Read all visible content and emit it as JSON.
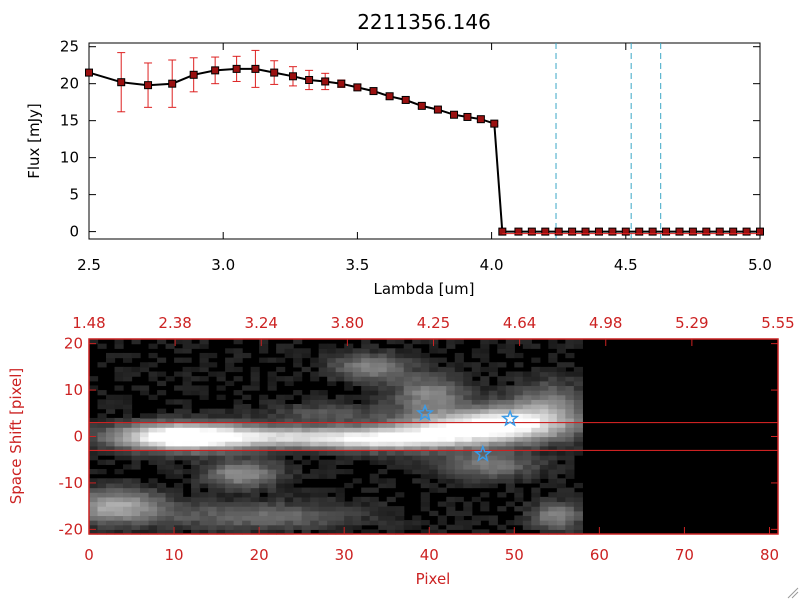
{
  "colors": {
    "axes_black": "#000000",
    "accent_red": "#cc2222",
    "errorbar_red": "#dd2020",
    "marker_fill": "#9a1010",
    "line_cyan": "#3aa6c6",
    "star_blue": "#3a9be8"
  },
  "chart_data": [
    {
      "type": "line",
      "title": "2211356.146",
      "xlabel": "Lambda [um]",
      "ylabel": "Flux [mJy]",
      "xlim": [
        2.5,
        5.0
      ],
      "ylim": [
        -1,
        25.5
      ],
      "xticks": [
        "2.5",
        "3.0",
        "3.5",
        "4.0",
        "4.5",
        "5.0"
      ],
      "xtick_values": [
        2.5,
        3.0,
        3.5,
        4.0,
        4.5,
        5.0
      ],
      "yticks": [
        "0",
        "5",
        "10",
        "15",
        "20",
        "25"
      ],
      "ytick_values": [
        0,
        5,
        10,
        15,
        20,
        25
      ],
      "series": [
        {
          "name": "flux",
          "x": [
            2.5,
            2.62,
            2.72,
            2.81,
            2.89,
            2.97,
            3.05,
            3.12,
            3.19,
            3.26,
            3.32,
            3.38,
            3.44,
            3.5,
            3.56,
            3.62,
            3.68,
            3.74,
            3.8,
            3.86,
            3.91,
            3.96,
            4.01,
            4.04,
            4.1,
            4.15,
            4.2,
            4.25,
            4.3,
            4.35,
            4.4,
            4.45,
            4.5,
            4.55,
            4.6,
            4.65,
            4.7,
            4.75,
            4.8,
            4.85,
            4.9,
            4.95,
            5.0
          ],
          "y": [
            21.5,
            20.2,
            19.8,
            20.0,
            21.2,
            21.8,
            22.0,
            22.0,
            21.5,
            21.0,
            20.5,
            20.3,
            20.0,
            19.5,
            19.0,
            18.3,
            17.8,
            17.0,
            16.5,
            15.8,
            15.5,
            15.2,
            14.6,
            0.0,
            0.0,
            0.0,
            0.0,
            0.0,
            0.0,
            0.0,
            0.0,
            0.0,
            0.0,
            0.0,
            0.0,
            0.0,
            0.0,
            0.0,
            0.0,
            0.0,
            0.0,
            0.0,
            0.0
          ],
          "yerr": [
            0,
            4.0,
            3.0,
            3.2,
            2.3,
            1.8,
            1.7,
            2.5,
            1.6,
            1.3,
            1.3,
            1.1,
            0.5,
            0.4,
            0.4,
            0.4,
            0.4,
            0.3,
            0.3,
            0.3,
            0.3,
            0.3,
            0.3,
            0,
            0,
            0,
            0,
            0,
            0,
            0,
            0,
            0,
            0,
            0,
            0,
            0,
            0,
            0,
            0,
            0,
            0,
            0,
            0
          ]
        }
      ],
      "vlines": [
        4.24,
        4.52,
        4.63
      ]
    },
    {
      "type": "heatmap",
      "xlabel": "Pixel",
      "ylabel": "Space Shift [pixel]",
      "xlim": [
        0,
        81
      ],
      "ylim": [
        -21,
        21
      ],
      "xticks": [
        "0",
        "10",
        "20",
        "30",
        "40",
        "50",
        "60",
        "70",
        "80"
      ],
      "xtick_values": [
        0,
        10,
        20,
        30,
        40,
        50,
        60,
        70,
        80
      ],
      "yticks": [
        "-20",
        "-10",
        "0",
        "10",
        "20"
      ],
      "ytick_values": [
        -20,
        -10,
        0,
        10,
        20
      ],
      "top_ticks": [
        "1.48",
        "2.38",
        "3.24",
        "3.80",
        "4.25",
        "4.64",
        "4.98",
        "5.29",
        "5.55"
      ],
      "hlines": [
        3,
        -3
      ],
      "data_extent_pixel": 58,
      "blobs": [
        {
          "x": 11,
          "y": 0,
          "sx": 5,
          "sy": 2.0,
          "amp": 1.0
        },
        {
          "x": 25,
          "y": 0,
          "sx": 12,
          "sy": 1.6,
          "amp": 0.7
        },
        {
          "x": 50,
          "y": 3,
          "sx": 5,
          "sy": 2.5,
          "amp": 0.9
        },
        {
          "x": 42,
          "y": 1.5,
          "sx": 5,
          "sy": 2.2,
          "amp": 0.6
        },
        {
          "x": 35,
          "y": -1,
          "sx": 6,
          "sy": 1.5,
          "amp": 0.45
        },
        {
          "x": 18,
          "y": -8,
          "sx": 3,
          "sy": 2,
          "amp": 0.45
        },
        {
          "x": 3,
          "y": -15,
          "sx": 4,
          "sy": 2.5,
          "amp": 0.55
        },
        {
          "x": 33,
          "y": 15,
          "sx": 3,
          "sy": 2,
          "amp": 0.4
        },
        {
          "x": 40,
          "y": 9,
          "sx": 3,
          "sy": 3,
          "amp": 0.4
        },
        {
          "x": 47,
          "y": -6,
          "sx": 4,
          "sy": 2,
          "amp": 0.35
        },
        {
          "x": 55,
          "y": -17,
          "sx": 2,
          "sy": 2,
          "amp": 0.4
        },
        {
          "x": 20,
          "y": -17,
          "sx": 8,
          "sy": 2,
          "amp": 0.3
        },
        {
          "x": 28,
          "y": 5,
          "sx": 5,
          "sy": 1.5,
          "amp": 0.2
        },
        {
          "x": 54,
          "y": 8,
          "sx": 3,
          "sy": 3,
          "amp": 0.3
        }
      ],
      "stars": [
        {
          "x": 39.5,
          "y": 5.0
        },
        {
          "x": 49.5,
          "y": 3.8
        },
        {
          "x": 46.3,
          "y": -3.8
        }
      ]
    }
  ]
}
